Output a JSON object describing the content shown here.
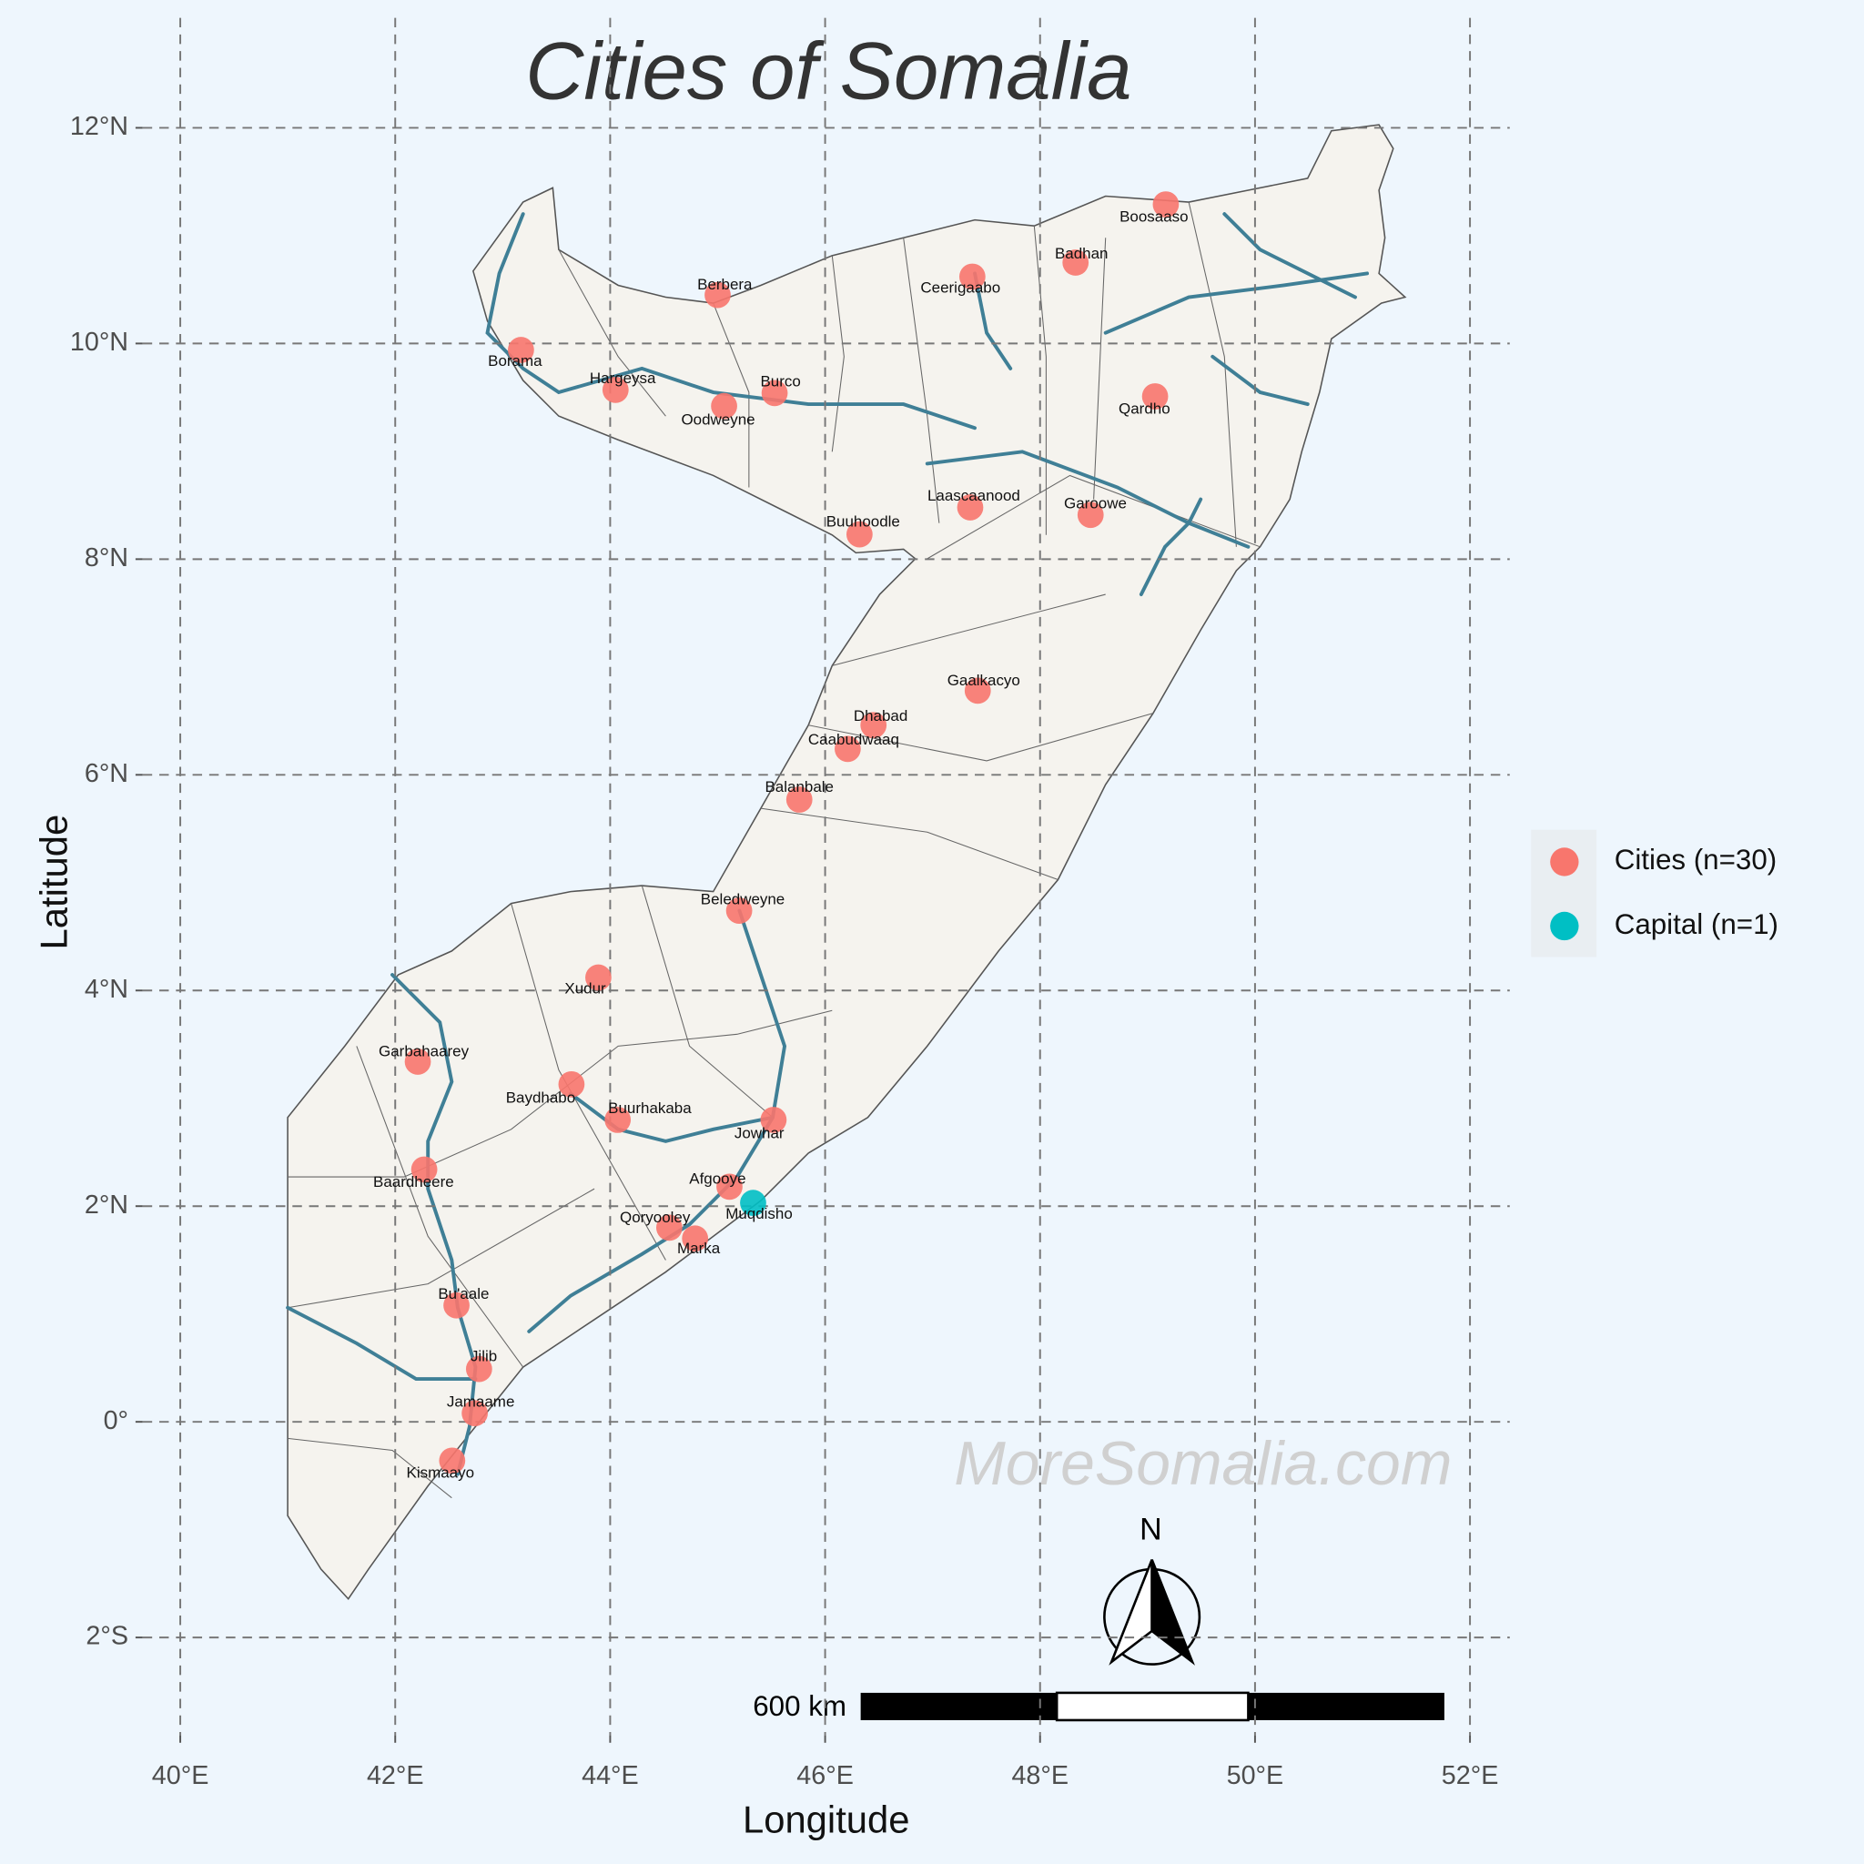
{
  "chart_data": {
    "type": "scatter",
    "title": "Cities of Somalia",
    "x_label": "Longitude",
    "y_label": "Latitude",
    "xlim": [
      39.65,
      52.37
    ],
    "ylim": [
      -2.91,
      13.02
    ],
    "xticks": [
      {
        "value": 40,
        "label": "40°E"
      },
      {
        "value": 42,
        "label": "42°E"
      },
      {
        "value": 44,
        "label": "44°E"
      },
      {
        "value": 46,
        "label": "46°E"
      },
      {
        "value": 48,
        "label": "48°E"
      },
      {
        "value": 50,
        "label": "50°E"
      },
      {
        "value": 52,
        "label": "52°E"
      }
    ],
    "yticks": [
      {
        "value": -2,
        "label": "2°S"
      },
      {
        "value": 0,
        "label": "0°"
      },
      {
        "value": 2,
        "label": "2°N"
      },
      {
        "value": 4,
        "label": "4°N"
      },
      {
        "value": 6,
        "label": "6°N"
      },
      {
        "value": 8,
        "label": "8°N"
      },
      {
        "value": 10,
        "label": "10°N"
      },
      {
        "value": 12,
        "label": "12°N"
      }
    ],
    "grid": true,
    "legend": "right",
    "series": [
      {
        "name": "Cities (n=30)",
        "color": "#F8766D",
        "labels": [
          "Boosaaso",
          "Badhan",
          "Ceerigaabo",
          "Berbera",
          "Borama",
          "Hargeysa",
          "Burco",
          "Oodweyne",
          "Qardho",
          "Laascaanood",
          "Garoowe",
          "Buuhoodle",
          "Gaalkacyo",
          "Dhabad",
          "Caabudwaaq",
          "Balanbale",
          "Beledweyne",
          "Xudur",
          "Garbahaarey",
          "Baydhabo",
          "Buurhakaba",
          "Jowhar",
          "Baardheere",
          "Afgooye",
          "Qoryooley",
          "Marka",
          "Bu'aale",
          "Jilib",
          "Jamaame",
          "Kismaayo"
        ],
        "x": [
          49.17,
          48.33,
          47.37,
          45.0,
          43.17,
          44.05,
          45.53,
          45.06,
          49.07,
          47.35,
          48.47,
          46.32,
          47.42,
          46.45,
          46.21,
          45.76,
          45.2,
          43.89,
          42.21,
          43.64,
          44.07,
          45.52,
          42.27,
          45.11,
          44.55,
          44.79,
          42.57,
          42.78,
          42.74,
          42.53
        ],
        "values": [
          11.29,
          10.75,
          10.62,
          10.45,
          9.94,
          9.57,
          9.54,
          9.42,
          9.51,
          8.48,
          8.41,
          8.23,
          6.78,
          6.46,
          6.24,
          5.77,
          4.74,
          4.12,
          3.34,
          3.13,
          2.8,
          2.8,
          2.34,
          2.18,
          1.8,
          1.7,
          1.08,
          0.49,
          0.08,
          -0.36
        ]
      },
      {
        "name": "Capital (n=1)",
        "color": "#00BFC4",
        "labels": [
          "Muqdisho"
        ],
        "x": [
          45.33
        ],
        "values": [
          2.03
        ]
      }
    ],
    "watermark": "MoreSomalia.com",
    "scale_bar": "600 km",
    "north_arrow": "N"
  }
}
